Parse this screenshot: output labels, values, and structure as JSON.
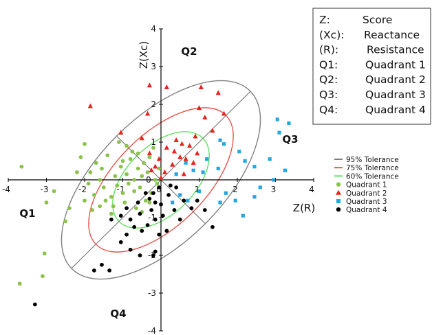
{
  "chart_data": {
    "type": "scatter",
    "xlabel": "Z(R)",
    "ylabel": "Z(Xc)",
    "xlim": [
      -4,
      4
    ],
    "ylim": [
      -4,
      4
    ],
    "x_ticks": [
      "-4",
      "-3",
      "-2",
      "-1",
      "0",
      "1",
      "2",
      "3",
      "4"
    ],
    "y_ticks": [
      "-4",
      "-3",
      "-2",
      "-1",
      "0",
      "1",
      "2",
      "3",
      "4"
    ],
    "grid": false,
    "quadrant_labels": [
      "Q1",
      "Q2",
      "Q3",
      "Q4"
    ],
    "key": {
      "rows": [
        {
          "abbr": "Z:",
          "meaning": "Score"
        },
        {
          "abbr": "(Xc):",
          "meaning": "Reactance"
        },
        {
          "abbr": "(R):",
          "meaning": "Resistance"
        },
        {
          "abbr": "Q1:",
          "meaning": "Quadrant 1"
        },
        {
          "abbr": "Q2:",
          "meaning": "Quadrant 2"
        },
        {
          "abbr": "Q3:",
          "meaning": "Quadrant 3"
        },
        {
          "abbr": "Q4:",
          "meaning": "Quadrant 4"
        }
      ]
    },
    "legend_position": "right",
    "ellipses": [
      {
        "name": "95% Tolerance",
        "color": "#7f7f7f",
        "semi_major": 3.3,
        "semi_minor": 1.65,
        "angle_deg": 45
      },
      {
        "name": "75% Tolerance",
        "color": "#e8534a",
        "semi_major": 2.4,
        "semi_minor": 1.2,
        "angle_deg": 45
      },
      {
        "name": "60% Tolerance",
        "color": "#5fe05f",
        "semi_major": 1.55,
        "semi_minor": 0.9,
        "angle_deg": 45
      }
    ],
    "diagonals": {
      "color": "#7f7f7f",
      "major_half_length": 3.3,
      "minor_half_length": 1.65
    },
    "series": [
      {
        "name": "Quadrant 1",
        "marker": "circle",
        "color": "#8bc34a",
        "points": [
          [
            -3.65,
            0.35
          ],
          [
            -3.7,
            -2.75
          ],
          [
            -3.0,
            -0.6
          ],
          [
            -3.05,
            -1.95
          ],
          [
            -3.1,
            -2.55
          ],
          [
            -2.8,
            -0.3
          ],
          [
            -2.5,
            -1.1
          ],
          [
            -2.4,
            -0.75
          ],
          [
            -2.2,
            0.2
          ],
          [
            -2.1,
            0.6
          ],
          [
            -2.0,
            0.95
          ],
          [
            -1.9,
            -0.1
          ],
          [
            -1.8,
            -0.8
          ],
          [
            -1.75,
            -0.4
          ],
          [
            -1.7,
            0.45
          ],
          [
            -1.6,
            0.0
          ],
          [
            -1.5,
            -0.2
          ],
          [
            -1.45,
            -0.55
          ],
          [
            -1.4,
            0.65
          ],
          [
            -1.3,
            -0.9
          ],
          [
            -1.25,
            -0.7
          ],
          [
            -1.2,
            0.1
          ],
          [
            -1.1,
            1.0
          ],
          [
            -1.05,
            0.35
          ],
          [
            -1.0,
            -0.35
          ],
          [
            -0.95,
            -0.6
          ],
          [
            -0.9,
            0.15
          ],
          [
            -0.85,
            -0.1
          ],
          [
            -0.8,
            0.55
          ],
          [
            -0.75,
            0.75
          ],
          [
            -0.7,
            -0.3
          ],
          [
            -0.65,
            -0.75
          ],
          [
            -0.6,
            0.3
          ],
          [
            -0.55,
            -0.2
          ],
          [
            -0.5,
            0.1
          ],
          [
            -0.45,
            0.45
          ],
          [
            -0.4,
            -0.55
          ],
          [
            -0.35,
            0.2
          ],
          [
            -0.3,
            0.6
          ],
          [
            -0.25,
            -0.35
          ],
          [
            -0.2,
            0.85
          ],
          [
            -0.15,
            0.0
          ],
          [
            -0.1,
            -0.1
          ],
          [
            -0.05,
            0.3
          ],
          [
            -1.15,
            -0.15
          ],
          [
            -1.55,
            0.3
          ],
          [
            -1.85,
            0.2
          ],
          [
            -0.6,
            0.7
          ],
          [
            -0.9,
            0.9
          ],
          [
            -1.3,
            -0.45
          ],
          [
            -0.5,
            -0.85
          ],
          [
            -1.6,
            -0.7
          ],
          [
            -2.0,
            -0.55
          ],
          [
            -0.7,
            0.0
          ],
          [
            -1.0,
            0.5
          ],
          [
            -0.3,
            -0.6
          ]
        ]
      },
      {
        "name": "Quadrant 2",
        "marker": "triangle",
        "color": "#e8221c",
        "points": [
          [
            -1.85,
            1.95
          ],
          [
            -0.3,
            2.5
          ],
          [
            0.15,
            2.45
          ],
          [
            1.05,
            2.45
          ],
          [
            1.5,
            2.3
          ],
          [
            1.65,
            1.75
          ],
          [
            1.0,
            1.9
          ],
          [
            1.15,
            1.65
          ],
          [
            -0.35,
            1.75
          ],
          [
            -1.05,
            1.25
          ],
          [
            -0.5,
            1.1
          ],
          [
            -0.3,
            0.7
          ],
          [
            -0.05,
            0.55
          ],
          [
            0.15,
            0.85
          ],
          [
            0.35,
            0.75
          ],
          [
            0.55,
            0.95
          ],
          [
            0.75,
            0.9
          ],
          [
            0.9,
            1.15
          ],
          [
            0.95,
            0.7
          ],
          [
            0.65,
            0.55
          ],
          [
            0.5,
            0.6
          ],
          [
            0.3,
            0.4
          ],
          [
            0.1,
            0.2
          ],
          [
            0.85,
            0.45
          ],
          [
            -0.15,
            0.35
          ],
          [
            0.0,
            0.05
          ],
          [
            0.6,
            0.15
          ],
          [
            1.35,
            1.3
          ],
          [
            0.4,
            1.05
          ],
          [
            -0.25,
            0.25
          ]
        ]
      },
      {
        "name": "Quadrant 3",
        "marker": "square",
        "color": "#22a8e0",
        "points": [
          [
            3.05,
            1.6
          ],
          [
            3.35,
            1.5
          ],
          [
            1.55,
            1.05
          ],
          [
            1.65,
            0.95
          ],
          [
            1.2,
            0.55
          ],
          [
            0.65,
            0.45
          ],
          [
            0.4,
            0.15
          ],
          [
            0.85,
            0.25
          ],
          [
            1.1,
            0.2
          ],
          [
            1.5,
            0.3
          ],
          [
            1.0,
            -0.3
          ],
          [
            0.5,
            -0.4
          ],
          [
            0.3,
            -0.6
          ],
          [
            1.55,
            -0.6
          ],
          [
            1.95,
            -0.55
          ],
          [
            2.15,
            -0.95
          ],
          [
            2.45,
            -0.45
          ],
          [
            2.6,
            -0.2
          ],
          [
            2.95,
            0.0
          ],
          [
            3.25,
            0.25
          ],
          [
            2.45,
            0.35
          ],
          [
            2.2,
            0.5
          ],
          [
            2.85,
            0.55
          ],
          [
            3.1,
            1.25
          ],
          [
            2.05,
            0.75
          ],
          [
            1.7,
            -0.35
          ],
          [
            0.7,
            -0.55
          ]
        ]
      },
      {
        "name": "Quadrant 4",
        "marker": "circle",
        "color": "#000000",
        "points": [
          [
            -3.3,
            -3.3
          ],
          [
            -1.75,
            -2.4
          ],
          [
            -1.55,
            -2.25
          ],
          [
            -1.35,
            -2.4
          ],
          [
            -0.8,
            -1.85
          ],
          [
            -0.55,
            -2.0
          ],
          [
            -0.2,
            -2.0
          ],
          [
            -0.15,
            -1.9
          ],
          [
            -1.05,
            -1.65
          ],
          [
            -0.9,
            -1.45
          ],
          [
            -0.5,
            -1.35
          ],
          [
            -0.35,
            -1.2
          ],
          [
            -0.15,
            -1.05
          ],
          [
            -0.05,
            -1.45
          ],
          [
            -1.3,
            -1.05
          ],
          [
            -0.8,
            -1.05
          ],
          [
            -0.55,
            -0.9
          ],
          [
            -0.25,
            -0.8
          ],
          [
            0.0,
            -0.65
          ],
          [
            0.2,
            -0.4
          ],
          [
            0.4,
            -0.2
          ],
          [
            0.6,
            -0.55
          ],
          [
            0.8,
            -0.75
          ],
          [
            0.95,
            -0.55
          ],
          [
            1.15,
            -0.8
          ],
          [
            1.35,
            -1.25
          ],
          [
            0.5,
            -1.05
          ],
          [
            0.15,
            -1.35
          ],
          [
            -0.05,
            -0.2
          ],
          [
            -0.3,
            -0.5
          ],
          [
            -0.6,
            -0.6
          ],
          [
            -0.9,
            -0.75
          ],
          [
            -0.4,
            -0.35
          ],
          [
            -0.15,
            -0.6
          ],
          [
            0.05,
            -0.95
          ],
          [
            -1.05,
            -0.95
          ],
          [
            0.35,
            -0.8
          ],
          [
            -0.7,
            -1.25
          ],
          [
            0.25,
            -0.15
          ],
          [
            -0.2,
            -0.35
          ]
        ]
      }
    ]
  }
}
